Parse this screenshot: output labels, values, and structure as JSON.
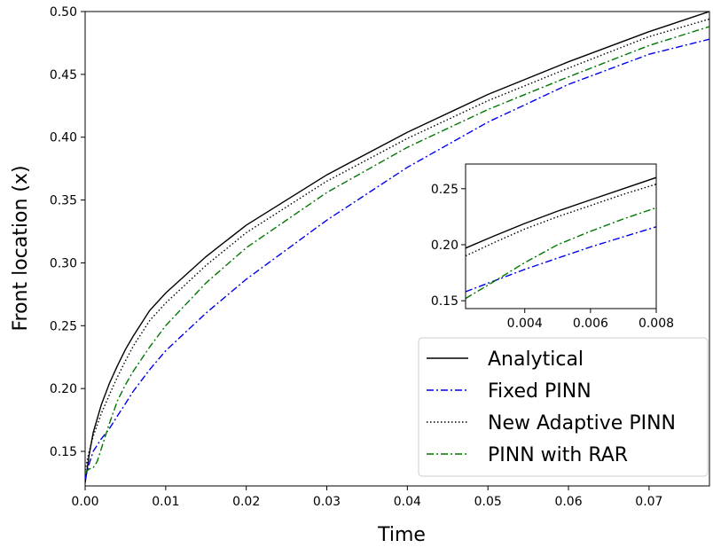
{
  "chart_data": {
    "type": "line",
    "title": "",
    "xlabel": "Time",
    "ylabel": "Front location (x)",
    "xlim": [
      0.0,
      0.0775
    ],
    "ylim": [
      0.1225,
      0.5
    ],
    "xticks": [
      "0.00",
      "0.01",
      "0.02",
      "0.03",
      "0.04",
      "0.05",
      "0.06",
      "0.07"
    ],
    "yticks": [
      "0.15",
      "0.20",
      "0.25",
      "0.30",
      "0.35",
      "0.40",
      "0.45",
      "0.50"
    ],
    "grid": false,
    "legend": {
      "position": "lower-right",
      "entries": [
        "Analytical",
        "Fixed PINN",
        "New Adaptive PINN",
        "PINN with RAR"
      ]
    },
    "series": [
      {
        "name": "Analytical",
        "color": "#000000",
        "style": "solid",
        "x": [
          0.0,
          0.0005,
          0.001,
          0.002,
          0.003,
          0.004,
          0.005,
          0.006,
          0.008,
          0.01,
          0.015,
          0.02,
          0.03,
          0.04,
          0.05,
          0.06,
          0.07,
          0.0775
        ],
        "y": [
          0.125,
          0.147,
          0.165,
          0.187,
          0.204,
          0.218,
          0.231,
          0.242,
          0.262,
          0.276,
          0.305,
          0.33,
          0.37,
          0.404,
          0.434,
          0.46,
          0.484,
          0.5
        ]
      },
      {
        "name": "Fixed PINN",
        "color": "#0000ee",
        "style": "dashdot",
        "x": [
          0.0,
          0.0005,
          0.001,
          0.002,
          0.003,
          0.004,
          0.005,
          0.006,
          0.008,
          0.01,
          0.015,
          0.02,
          0.03,
          0.04,
          0.05,
          0.06,
          0.07,
          0.0775
        ],
        "y": [
          0.128,
          0.14,
          0.15,
          0.16,
          0.168,
          0.178,
          0.188,
          0.198,
          0.215,
          0.23,
          0.26,
          0.287,
          0.334,
          0.376,
          0.412,
          0.442,
          0.466,
          0.478
        ]
      },
      {
        "name": "New Adaptive PINN",
        "color": "#000000",
        "style": "dotted",
        "x": [
          0.0,
          0.0005,
          0.001,
          0.002,
          0.003,
          0.004,
          0.005,
          0.006,
          0.008,
          0.01,
          0.015,
          0.02,
          0.03,
          0.04,
          0.05,
          0.06,
          0.07,
          0.0775
        ],
        "y": [
          0.135,
          0.15,
          0.162,
          0.18,
          0.195,
          0.209,
          0.222,
          0.234,
          0.254,
          0.268,
          0.298,
          0.324,
          0.365,
          0.399,
          0.429,
          0.455,
          0.48,
          0.494
        ]
      },
      {
        "name": "PINN with RAR",
        "color": "#007700",
        "style": "dashdot",
        "x": [
          0.0,
          0.0005,
          0.001,
          0.0015,
          0.002,
          0.003,
          0.004,
          0.005,
          0.006,
          0.008,
          0.01,
          0.015,
          0.02,
          0.03,
          0.04,
          0.05,
          0.06,
          0.07,
          0.0775
        ],
        "y": [
          0.133,
          0.136,
          0.137,
          0.142,
          0.152,
          0.172,
          0.19,
          0.203,
          0.214,
          0.233,
          0.25,
          0.284,
          0.312,
          0.356,
          0.392,
          0.422,
          0.448,
          0.473,
          0.488
        ]
      }
    ],
    "inset": {
      "xlim": [
        0.0022,
        0.008
      ],
      "ylim": [
        0.143,
        0.272
      ],
      "xticks": [
        "0.004",
        "0.006",
        "0.008"
      ],
      "yticks": [
        "0.15",
        "0.20",
        "0.25"
      ],
      "series": [
        {
          "name": "Analytical",
          "x": [
            0.0022,
            0.003,
            0.004,
            0.005,
            0.006,
            0.007,
            0.008
          ],
          "y": [
            0.197,
            0.207,
            0.219,
            0.23,
            0.24,
            0.25,
            0.26
          ]
        },
        {
          "name": "Fixed PINN",
          "x": [
            0.0022,
            0.003,
            0.004,
            0.005,
            0.006,
            0.007,
            0.008
          ],
          "y": [
            0.158,
            0.167,
            0.178,
            0.188,
            0.198,
            0.207,
            0.216
          ]
        },
        {
          "name": "New Adaptive PINN",
          "x": [
            0.0022,
            0.003,
            0.004,
            0.005,
            0.006,
            0.007,
            0.008
          ],
          "y": [
            0.19,
            0.201,
            0.214,
            0.225,
            0.235,
            0.245,
            0.254
          ]
        },
        {
          "name": "PINN with RAR",
          "x": [
            0.0022,
            0.003,
            0.004,
            0.005,
            0.006,
            0.007,
            0.008
          ],
          "y": [
            0.152,
            0.166,
            0.184,
            0.2,
            0.212,
            0.223,
            0.233
          ]
        }
      ]
    }
  }
}
